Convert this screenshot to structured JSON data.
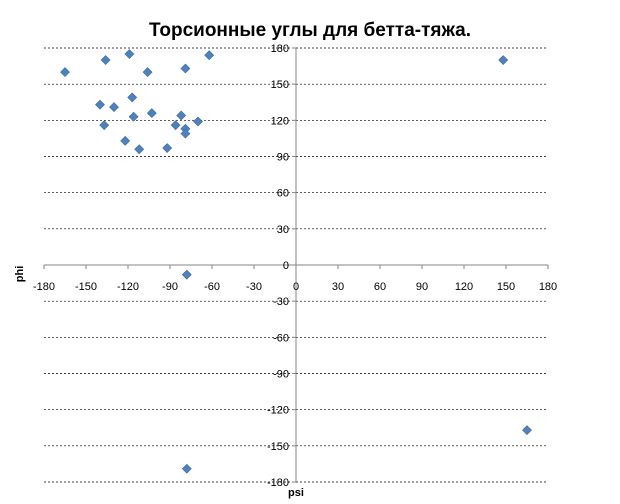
{
  "chart_data": {
    "type": "scatter",
    "title": "Торсионные углы для бетта-тяжа.",
    "xlabel": "psi",
    "ylabel": "phi",
    "xlim": [
      -180,
      180
    ],
    "ylim": [
      -180,
      180
    ],
    "xticks": [
      -180,
      -150,
      -120,
      -90,
      -60,
      -30,
      0,
      30,
      60,
      90,
      120,
      150,
      180
    ],
    "yticks": [
      180,
      150,
      120,
      90,
      60,
      30,
      0,
      -30,
      -60,
      -90,
      -120,
      -150,
      -180
    ],
    "xtick_labels": [
      "-180",
      "-150",
      "-120",
      "-90",
      "-60",
      "-30",
      "0",
      "30",
      "60",
      "90",
      "120",
      "150",
      "180"
    ],
    "ytick_labels": [
      "180",
      "150",
      "120",
      "90",
      "60",
      "30",
      "0",
      "-30",
      "-60",
      "-90",
      "-120",
      "-150",
      "-180"
    ],
    "grid": "horizontal",
    "marker": "diamond",
    "color": "#4f81bd",
    "points": [
      {
        "x": -165,
        "y": 160
      },
      {
        "x": -136,
        "y": 170
      },
      {
        "x": -119,
        "y": 175
      },
      {
        "x": -106,
        "y": 160
      },
      {
        "x": -79,
        "y": 163
      },
      {
        "x": -62,
        "y": 174
      },
      {
        "x": -140,
        "y": 133
      },
      {
        "x": -130,
        "y": 131
      },
      {
        "x": -117,
        "y": 139
      },
      {
        "x": -103,
        "y": 126
      },
      {
        "x": -82,
        "y": 124
      },
      {
        "x": -137,
        "y": 116
      },
      {
        "x": -116,
        "y": 123
      },
      {
        "x": -86,
        "y": 116
      },
      {
        "x": -70,
        "y": 119
      },
      {
        "x": -79,
        "y": 113
      },
      {
        "x": -79,
        "y": 109
      },
      {
        "x": -122,
        "y": 103
      },
      {
        "x": -112,
        "y": 96
      },
      {
        "x": -92,
        "y": 97
      },
      {
        "x": -78,
        "y": -8
      },
      {
        "x": 148,
        "y": 170
      },
      {
        "x": 165,
        "y": -137
      },
      {
        "x": -78,
        "y": -169
      }
    ]
  }
}
